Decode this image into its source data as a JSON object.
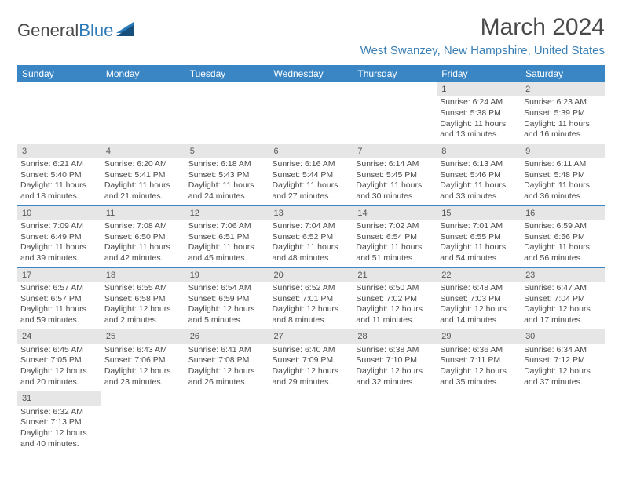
{
  "logo": {
    "part1": "General",
    "part2": "Blue"
  },
  "title": "March 2024",
  "location": "West Swanzey, New Hampshire, United States",
  "colors": {
    "header_bg": "#3a86c5",
    "header_fg": "#ffffff",
    "daynum_bg": "#e6e6e6",
    "border": "#3a86c5",
    "text": "#4a4a4a",
    "location": "#3a7fb5"
  },
  "typography": {
    "title_fontsize": 30,
    "location_fontsize": 15,
    "dayheader_fontsize": 12,
    "cell_fontsize": 10.5
  },
  "layout": {
    "cols": 7,
    "rows": 6
  },
  "day_headers": [
    "Sunday",
    "Monday",
    "Tuesday",
    "Wednesday",
    "Thursday",
    "Friday",
    "Saturday"
  ],
  "weeks": [
    [
      null,
      null,
      null,
      null,
      null,
      {
        "n": "1",
        "sunrise": "6:24 AM",
        "sunset": "5:38 PM",
        "daylight": "11 hours and 13 minutes."
      },
      {
        "n": "2",
        "sunrise": "6:23 AM",
        "sunset": "5:39 PM",
        "daylight": "11 hours and 16 minutes."
      }
    ],
    [
      {
        "n": "3",
        "sunrise": "6:21 AM",
        "sunset": "5:40 PM",
        "daylight": "11 hours and 18 minutes."
      },
      {
        "n": "4",
        "sunrise": "6:20 AM",
        "sunset": "5:41 PM",
        "daylight": "11 hours and 21 minutes."
      },
      {
        "n": "5",
        "sunrise": "6:18 AM",
        "sunset": "5:43 PM",
        "daylight": "11 hours and 24 minutes."
      },
      {
        "n": "6",
        "sunrise": "6:16 AM",
        "sunset": "5:44 PM",
        "daylight": "11 hours and 27 minutes."
      },
      {
        "n": "7",
        "sunrise": "6:14 AM",
        "sunset": "5:45 PM",
        "daylight": "11 hours and 30 minutes."
      },
      {
        "n": "8",
        "sunrise": "6:13 AM",
        "sunset": "5:46 PM",
        "daylight": "11 hours and 33 minutes."
      },
      {
        "n": "9",
        "sunrise": "6:11 AM",
        "sunset": "5:48 PM",
        "daylight": "11 hours and 36 minutes."
      }
    ],
    [
      {
        "n": "10",
        "sunrise": "7:09 AM",
        "sunset": "6:49 PM",
        "daylight": "11 hours and 39 minutes."
      },
      {
        "n": "11",
        "sunrise": "7:08 AM",
        "sunset": "6:50 PM",
        "daylight": "11 hours and 42 minutes."
      },
      {
        "n": "12",
        "sunrise": "7:06 AM",
        "sunset": "6:51 PM",
        "daylight": "11 hours and 45 minutes."
      },
      {
        "n": "13",
        "sunrise": "7:04 AM",
        "sunset": "6:52 PM",
        "daylight": "11 hours and 48 minutes."
      },
      {
        "n": "14",
        "sunrise": "7:02 AM",
        "sunset": "6:54 PM",
        "daylight": "11 hours and 51 minutes."
      },
      {
        "n": "15",
        "sunrise": "7:01 AM",
        "sunset": "6:55 PM",
        "daylight": "11 hours and 54 minutes."
      },
      {
        "n": "16",
        "sunrise": "6:59 AM",
        "sunset": "6:56 PM",
        "daylight": "11 hours and 56 minutes."
      }
    ],
    [
      {
        "n": "17",
        "sunrise": "6:57 AM",
        "sunset": "6:57 PM",
        "daylight": "11 hours and 59 minutes."
      },
      {
        "n": "18",
        "sunrise": "6:55 AM",
        "sunset": "6:58 PM",
        "daylight": "12 hours and 2 minutes."
      },
      {
        "n": "19",
        "sunrise": "6:54 AM",
        "sunset": "6:59 PM",
        "daylight": "12 hours and 5 minutes."
      },
      {
        "n": "20",
        "sunrise": "6:52 AM",
        "sunset": "7:01 PM",
        "daylight": "12 hours and 8 minutes."
      },
      {
        "n": "21",
        "sunrise": "6:50 AM",
        "sunset": "7:02 PM",
        "daylight": "12 hours and 11 minutes."
      },
      {
        "n": "22",
        "sunrise": "6:48 AM",
        "sunset": "7:03 PM",
        "daylight": "12 hours and 14 minutes."
      },
      {
        "n": "23",
        "sunrise": "6:47 AM",
        "sunset": "7:04 PM",
        "daylight": "12 hours and 17 minutes."
      }
    ],
    [
      {
        "n": "24",
        "sunrise": "6:45 AM",
        "sunset": "7:05 PM",
        "daylight": "12 hours and 20 minutes."
      },
      {
        "n": "25",
        "sunrise": "6:43 AM",
        "sunset": "7:06 PM",
        "daylight": "12 hours and 23 minutes."
      },
      {
        "n": "26",
        "sunrise": "6:41 AM",
        "sunset": "7:08 PM",
        "daylight": "12 hours and 26 minutes."
      },
      {
        "n": "27",
        "sunrise": "6:40 AM",
        "sunset": "7:09 PM",
        "daylight": "12 hours and 29 minutes."
      },
      {
        "n": "28",
        "sunrise": "6:38 AM",
        "sunset": "7:10 PM",
        "daylight": "12 hours and 32 minutes."
      },
      {
        "n": "29",
        "sunrise": "6:36 AM",
        "sunset": "7:11 PM",
        "daylight": "12 hours and 35 minutes."
      },
      {
        "n": "30",
        "sunrise": "6:34 AM",
        "sunset": "7:12 PM",
        "daylight": "12 hours and 37 minutes."
      }
    ],
    [
      {
        "n": "31",
        "sunrise": "6:32 AM",
        "sunset": "7:13 PM",
        "daylight": "12 hours and 40 minutes."
      },
      null,
      null,
      null,
      null,
      null,
      null
    ]
  ]
}
